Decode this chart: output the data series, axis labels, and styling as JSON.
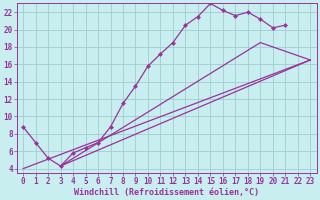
{
  "xlabel": "Windchill (Refroidissement éolien,°C)",
  "bg_color": "#c8eef0",
  "grid_color": "#a0ccd0",
  "line_color": "#993399",
  "spine_color": "#993399",
  "xlim": [
    -0.5,
    23.5
  ],
  "ylim": [
    3.5,
    23.0
  ],
  "xticks": [
    0,
    1,
    2,
    3,
    4,
    5,
    6,
    7,
    8,
    9,
    10,
    11,
    12,
    13,
    14,
    15,
    16,
    17,
    18,
    19,
    20,
    21,
    22,
    23
  ],
  "yticks": [
    4,
    6,
    8,
    10,
    12,
    14,
    16,
    18,
    20,
    22
  ],
  "series1_x": [
    0,
    1,
    2,
    3,
    4,
    5,
    6,
    7,
    8,
    9,
    10,
    11,
    12,
    13,
    14,
    15,
    16,
    17,
    18,
    19,
    20,
    21
  ],
  "series1_y": [
    8.8,
    7.0,
    5.2,
    4.3,
    5.8,
    6.4,
    7.0,
    8.8,
    11.5,
    13.5,
    15.8,
    17.2,
    18.5,
    20.5,
    21.5,
    23.0,
    22.2,
    21.6,
    22.0,
    21.2,
    20.2,
    20.5
  ],
  "line2_x": [
    3,
    23
  ],
  "line2_y": [
    4.3,
    16.5
  ],
  "line3_x": [
    3,
    19,
    23
  ],
  "line3_y": [
    4.3,
    18.5,
    16.5
  ],
  "line4_x": [
    0,
    23
  ],
  "line4_y": [
    4.0,
    16.5
  ],
  "xlabel_fontsize": 6,
  "tick_fontsize": 5.5
}
